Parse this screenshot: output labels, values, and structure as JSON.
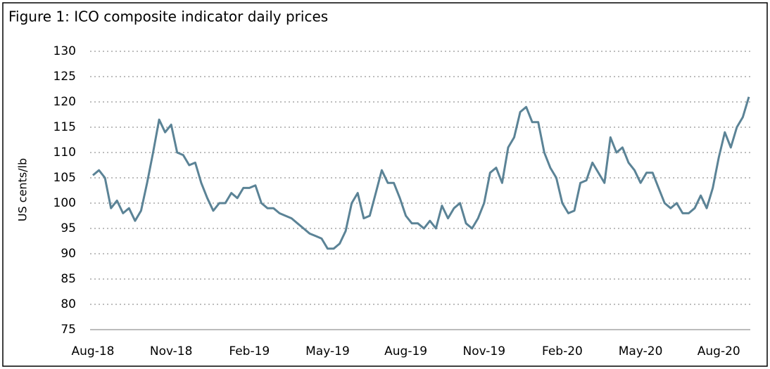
{
  "chart_data": {
    "type": "line",
    "title": "Figure 1: ICO composite indicator daily prices",
    "ylabel": "US cents/lb",
    "categories": [
      "Aug-18",
      null,
      null,
      null,
      null,
      null,
      null,
      null,
      null,
      null,
      null,
      null,
      null,
      "Nov-18",
      null,
      null,
      null,
      null,
      null,
      null,
      null,
      null,
      null,
      null,
      null,
      null,
      "Feb-19",
      null,
      null,
      null,
      null,
      null,
      null,
      null,
      null,
      null,
      null,
      null,
      null,
      "May-19",
      null,
      null,
      null,
      null,
      null,
      null,
      null,
      null,
      null,
      null,
      null,
      null,
      "Aug-19",
      null,
      null,
      null,
      null,
      null,
      null,
      null,
      null,
      null,
      null,
      null,
      null,
      "Nov-19",
      null,
      null,
      null,
      null,
      null,
      null,
      null,
      null,
      null,
      null,
      null,
      null,
      "Feb-20",
      null,
      null,
      null,
      null,
      null,
      null,
      null,
      null,
      null,
      null,
      null,
      null,
      "May-20",
      null,
      null,
      null,
      null,
      null,
      null,
      null,
      null,
      null,
      null,
      null,
      null,
      "Aug-20",
      null,
      null,
      null,
      null,
      null
    ],
    "series": [
      {
        "name": "ICO composite indicator",
        "color": "#5b8396",
        "values": [
          105.5,
          106.5,
          105,
          99,
          100.5,
          98,
          99,
          96.5,
          98.5,
          104,
          110,
          116.5,
          114,
          115.5,
          110,
          109.5,
          107.5,
          108,
          104,
          101,
          98.5,
          100,
          100,
          102,
          101,
          103,
          103,
          103.5,
          100,
          99,
          99,
          98,
          97.5,
          97,
          96,
          95,
          94,
          93.5,
          93,
          91,
          91,
          92,
          94.5,
          100,
          102,
          97,
          97.5,
          102,
          106.5,
          104,
          104,
          101,
          97.5,
          96,
          96,
          95,
          96.5,
          95,
          99.5,
          97,
          99,
          100,
          96,
          95,
          97,
          100,
          106,
          107,
          104,
          111,
          113,
          118,
          119,
          116,
          116,
          110,
          107,
          105,
          100,
          98,
          98.5,
          104,
          104.5,
          108,
          106,
          104,
          113,
          110,
          111,
          108,
          106.5,
          104,
          106,
          106,
          103,
          100,
          99,
          100,
          98,
          98,
          99,
          101.5,
          99,
          103,
          109,
          114,
          111,
          115,
          117,
          121
        ]
      }
    ],
    "ylim": [
      75,
      130
    ],
    "yticks": [
      75,
      80,
      85,
      90,
      95,
      100,
      105,
      110,
      115,
      120,
      125,
      130
    ],
    "grid": true
  }
}
